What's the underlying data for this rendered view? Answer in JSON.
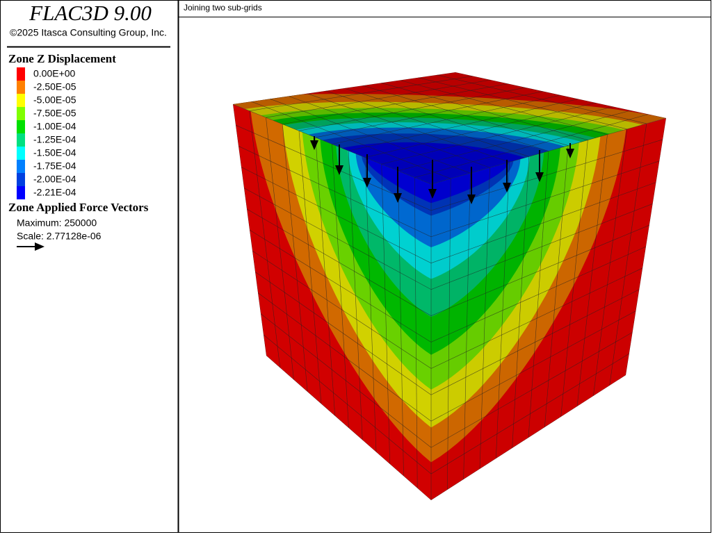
{
  "header": {
    "title": "FLAC3D 9.00",
    "copyright": "©2025 Itasca Consulting Group, Inc."
  },
  "legend": {
    "title": "Zone Z Displacement",
    "entries": [
      {
        "label": "0.00E+00",
        "color": "#ff0000"
      },
      {
        "label": "-2.50E-05",
        "color": "#ff8000"
      },
      {
        "label": "-5.00E-05",
        "color": "#ffff00"
      },
      {
        "label": "-7.50E-05",
        "color": "#80ff00"
      },
      {
        "label": "-1.00E-04",
        "color": "#00e000"
      },
      {
        "label": "-1.25E-04",
        "color": "#00e080"
      },
      {
        "label": "-1.50E-04",
        "color": "#00ffff"
      },
      {
        "label": "-1.75E-04",
        "color": "#0080ff"
      },
      {
        "label": "-2.00E-04",
        "color": "#0040e0"
      },
      {
        "label": "-2.21E-04",
        "color": "#0000ff"
      }
    ]
  },
  "vectors": {
    "title": "Zone Applied Force Vectors",
    "maximum": "Maximum: 250000",
    "scale": "Scale: 2.77128e-06"
  },
  "plot": {
    "title": "Joining two sub-grids"
  }
}
